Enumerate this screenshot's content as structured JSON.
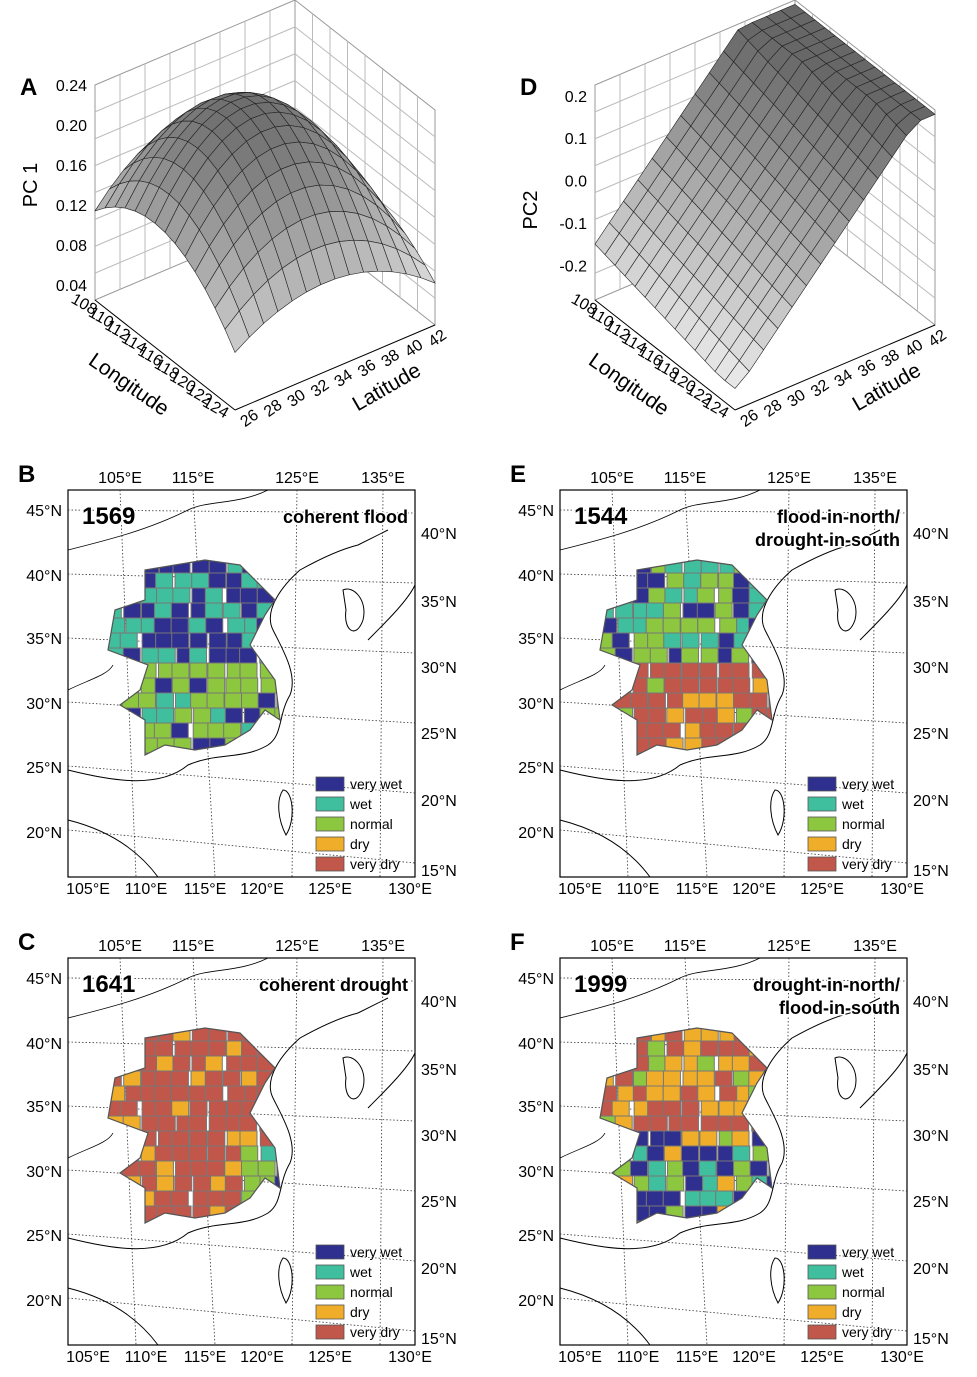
{
  "surfaces": [
    {
      "label": "A",
      "z_title": "PC 1",
      "z_ticks": [
        "0.24",
        "0.20",
        "0.16",
        "0.12",
        "0.08",
        "0.04"
      ],
      "longitude_title": "Longitude",
      "longitude_ticks": [
        "108",
        "110",
        "112",
        "114",
        "116",
        "118",
        "120",
        "122",
        "124"
      ],
      "latitude_title": "Latitude",
      "latitude_ticks": [
        "26",
        "28",
        "30",
        "32",
        "34",
        "36",
        "38",
        "40",
        "42"
      ]
    },
    {
      "label": "D",
      "z_title": "PC2",
      "z_ticks": [
        "0.2",
        "0.1",
        "0.0",
        "-0.1",
        "-0.2"
      ],
      "longitude_title": "Longitude",
      "longitude_ticks": [
        "108",
        "110",
        "112",
        "114",
        "116",
        "118",
        "120",
        "122",
        "124"
      ],
      "latitude_title": "Latitude",
      "latitude_ticks": [
        "26",
        "28",
        "30",
        "32",
        "34",
        "36",
        "38",
        "40",
        "42"
      ]
    }
  ],
  "maps": [
    {
      "label": "B",
      "year": "1569",
      "title": [
        "coherent flood"
      ]
    },
    {
      "label": "E",
      "year": "1544",
      "title": [
        "flood-in-north/",
        "drought-in-south"
      ]
    },
    {
      "label": "C",
      "year": "1641",
      "title": [
        "coherent drought"
      ]
    },
    {
      "label": "F",
      "year": "1999",
      "title": [
        "drought-in-north/",
        "flood-in-south"
      ]
    }
  ],
  "map_axes": {
    "top": [
      "105°E",
      "115°E",
      "125°E",
      "135°E"
    ],
    "left": [
      "45°N",
      "40°N",
      "35°N",
      "30°N",
      "25°N",
      "20°N"
    ],
    "right": [
      "40°N",
      "35°N",
      "30°N",
      "25°N",
      "20°N",
      "15°N"
    ],
    "bottom": [
      "105°E",
      "110°E",
      "115°E",
      "120°E",
      "125°E",
      "130°E"
    ]
  },
  "legend": [
    {
      "name": "very wet",
      "color": "#2e2f8e"
    },
    {
      "name": "wet",
      "color": "#3fbf9d"
    },
    {
      "name": "normal",
      "color": "#8dc63f"
    },
    {
      "name": "dry",
      "color": "#f0ad2a"
    },
    {
      "name": "very dry",
      "color": "#c0574a"
    }
  ]
}
